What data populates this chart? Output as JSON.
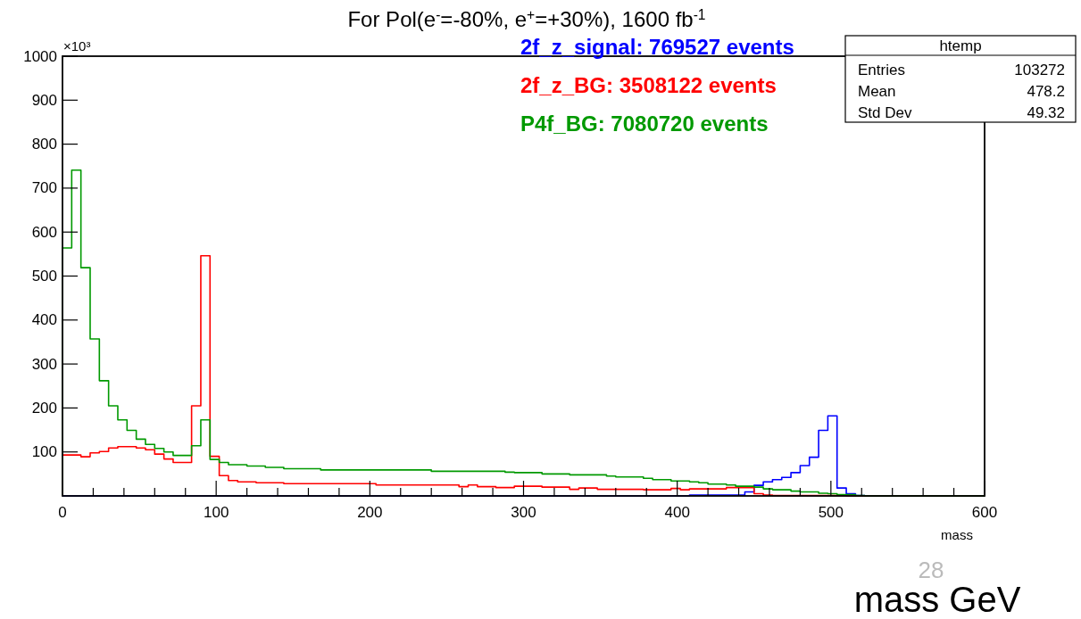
{
  "chart_data": {
    "type": "histogram",
    "title": "For Pol(e$^{-}$=-80%, e$^{+}$=+30%),  1600 fb$^{-1}$",
    "xlabel": "mass",
    "bins": [
      0,
      6,
      12,
      18,
      24,
      30,
      36,
      42,
      48,
      54,
      60,
      66,
      72,
      78,
      84,
      90,
      96,
      102,
      108,
      114,
      120,
      126,
      132,
      138,
      144,
      150,
      156,
      162,
      168,
      174,
      180,
      186,
      192,
      198,
      204,
      210,
      216,
      222,
      228,
      234,
      240,
      246,
      252,
      258,
      264,
      270,
      276,
      282,
      288,
      294,
      300,
      306,
      312,
      318,
      324,
      330,
      336,
      342,
      348,
      354,
      360,
      366,
      372,
      378,
      384,
      390,
      396,
      402,
      408,
      414,
      420,
      426,
      432,
      438,
      444,
      450,
      456,
      462,
      468,
      474,
      480,
      486,
      492,
      498,
      504,
      510,
      516,
      522,
      528,
      534,
      540,
      546,
      552,
      558,
      564,
      570,
      576,
      582,
      588,
      594,
      600
    ],
    "series": [
      {
        "name": "2f_z_signal: 769527 events",
        "color": "#0000ff",
        "values": [
          0,
          0,
          0,
          0,
          0,
          0,
          0,
          0,
          0,
          0,
          0,
          0,
          0,
          0,
          0,
          0,
          0,
          0,
          0,
          0,
          0,
          0,
          0,
          0,
          0,
          0,
          0,
          0,
          0,
          0,
          0,
          0,
          0,
          0,
          0,
          0,
          0,
          0,
          0,
          0,
          0,
          0,
          0,
          0,
          0,
          0,
          0,
          0,
          0,
          0,
          0,
          0,
          0,
          0,
          0,
          0,
          0,
          0,
          0,
          0,
          0,
          0,
          0,
          0,
          0,
          0,
          0,
          0,
          2,
          2,
          2,
          2,
          2,
          2,
          9,
          24,
          32,
          37,
          42,
          53,
          69,
          88,
          149,
          182,
          18,
          5,
          1,
          0,
          0,
          0,
          0,
          0,
          0,
          0,
          0,
          0,
          0,
          0,
          0,
          0
        ]
      },
      {
        "name": "2f_z_BG: 3508122 events",
        "color": "#ff0000",
        "values": [
          93,
          93,
          89,
          98,
          101,
          109,
          112,
          112,
          109,
          105,
          95,
          84,
          76,
          76,
          205,
          546,
          90,
          46,
          35,
          32,
          32,
          30,
          30,
          30,
          28,
          28,
          28,
          28,
          28,
          28,
          28,
          28,
          28,
          28,
          25,
          25,
          25,
          25,
          25,
          25,
          25,
          25,
          25,
          21,
          25,
          21,
          21,
          19,
          19,
          22,
          22,
          22,
          20,
          20,
          20,
          15,
          18,
          18,
          15,
          15,
          15,
          15,
          15,
          14,
          14,
          14,
          17,
          14,
          16,
          16,
          16,
          16,
          19,
          19,
          19,
          5,
          2,
          1,
          1,
          1,
          1,
          1,
          1,
          1,
          1,
          0,
          0,
          0,
          0,
          0,
          0,
          0,
          0,
          0,
          0,
          0,
          0,
          0,
          0,
          0
        ]
      },
      {
        "name": "P4f_BG: 7080720 events",
        "color": "#009900",
        "values": [
          564,
          741,
          519,
          357,
          262,
          205,
          173,
          149,
          129,
          117,
          108,
          100,
          92,
          92,
          114,
          173,
          83,
          76,
          71,
          71,
          68,
          68,
          65,
          65,
          62,
          62,
          62,
          62,
          59,
          59,
          59,
          59,
          59,
          59,
          59,
          59,
          59,
          59,
          59,
          59,
          56,
          56,
          56,
          56,
          56,
          56,
          56,
          56,
          54,
          53,
          53,
          53,
          50,
          50,
          50,
          48,
          48,
          48,
          48,
          45,
          43,
          43,
          43,
          40,
          37,
          37,
          34,
          34,
          32,
          30,
          27,
          27,
          25,
          22,
          22,
          20,
          16,
          14,
          14,
          11,
          9,
          9,
          6,
          5,
          3,
          3,
          1,
          0,
          0,
          0,
          0,
          0,
          0,
          0,
          0,
          0,
          0,
          0,
          0,
          0
        ]
      }
    ],
    "xlim": [
      0,
      600
    ],
    "xticks": [
      0,
      {
        "value": 20,
        "label": null
      },
      {
        "value": 40,
        "label": null
      },
      {
        "value": 60,
        "label": null
      },
      {
        "value": 80,
        "label": null
      },
      100,
      {
        "value": 120,
        "label": null
      },
      {
        "value": 140,
        "label": null
      },
      {
        "value": 160,
        "label": null
      },
      {
        "value": 180,
        "label": null
      },
      200,
      {
        "value": 220,
        "label": null
      },
      {
        "value": 240,
        "label": null
      },
      {
        "value": 260,
        "label": null
      },
      {
        "value": 280,
        "label": null
      },
      300,
      {
        "value": 320,
        "label": null
      },
      {
        "value": 340,
        "label": null
      },
      {
        "value": 360,
        "label": null
      },
      {
        "value": 380,
        "label": null
      },
      400,
      {
        "value": 420,
        "label": null
      },
      {
        "value": 440,
        "label": null
      },
      {
        "value": 460,
        "label": null
      },
      {
        "value": 480,
        "label": null
      },
      500,
      {
        "value": 520,
        "label": null
      },
      {
        "value": 540,
        "label": null
      },
      {
        "value": 560,
        "label": null
      },
      {
        "value": 580,
        "label": null
      },
      600
    ],
    "ylim": [
      0,
      1000
    ],
    "yticks": [
      100,
      200,
      300,
      400,
      500,
      600,
      700,
      800,
      900,
      1000
    ],
    "legend": "top right",
    "grid": false,
    "annotations": [
      "×10³",
      "htemp",
      "Entries",
      "103272",
      "Mean",
      "478.2",
      "Std Dev",
      "49.32",
      "mass GeV",
      "28"
    ]
  }
}
